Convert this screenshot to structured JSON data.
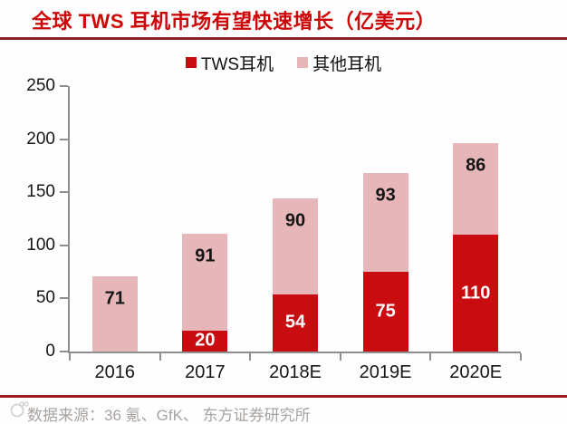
{
  "header": {
    "title": "全球 TWS 耳机市场有望快速增长（亿美元）"
  },
  "legend": [
    {
      "label": "TWS耳机",
      "color": "#c90c10"
    },
    {
      "label": "其他耳机",
      "color": "#e7b6b8"
    }
  ],
  "footer": {
    "source": "数据来源：36 氪、GfK、 东方证券研究所"
  },
  "colors": {
    "title_red": "#cc0606",
    "tws_red": "#c90c10",
    "other_pink": "#e7b6b8",
    "axis_gray": "#8e8e8e",
    "top_rule": "#842428",
    "bottom_rule": "#9e1c20",
    "source_gray": "#a7a3a0"
  },
  "chart_data": {
    "type": "bar",
    "stacked": true,
    "title": "全球 TWS 耳机市场有望快速增长（亿美元）",
    "categories": [
      "2016",
      "2017",
      "2018E",
      "2019E",
      "2020E"
    ],
    "series": [
      {
        "name": "TWS耳机",
        "color": "#c90c10",
        "label_color": "#ffffff",
        "values": [
          0,
          20,
          54,
          75,
          110
        ]
      },
      {
        "name": "其他耳机",
        "color": "#e7b6b8",
        "label_color": "#151515",
        "values": [
          71,
          91,
          90,
          93,
          86
        ]
      }
    ],
    "totals": [
      71,
      111,
      144,
      168,
      196
    ],
    "ylim": [
      0,
      250
    ],
    "yticks": [
      0,
      50,
      100,
      150,
      200,
      250
    ],
    "grid": false,
    "legend_position": "top",
    "value_labels": true
  }
}
